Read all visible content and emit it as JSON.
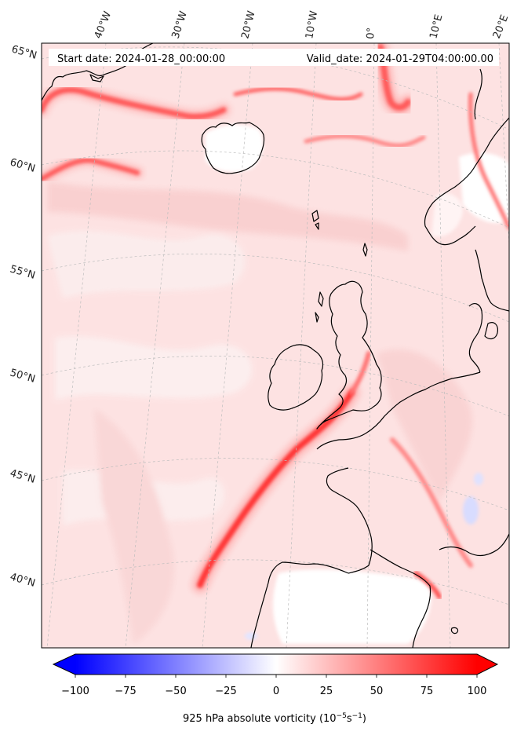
{
  "map": {
    "info": {
      "start_date": "Start date: 2024-01-28_00:00:00",
      "valid_date": "Valid_date: 2024-01-29T04:00:00.00"
    },
    "lon_labels": [
      "40°W",
      "30°W",
      "20°W",
      "10°W",
      "0°",
      "10°E",
      "20°E"
    ],
    "lat_labels": [
      "65°N",
      "60°N",
      "55°N",
      "50°N",
      "45°N",
      "40°N"
    ],
    "colorbar": {
      "label_prefix": "925 hPa absolute vorticity (10",
      "label_exp1": "−5",
      "label_mid": "s",
      "label_exp2": "−1",
      "label_suffix": ")",
      "ticks": [
        "−100",
        "−75",
        "−50",
        "−25",
        "0",
        "25",
        "50",
        "75",
        "100"
      ],
      "min": -100,
      "max": 100,
      "colormap": "bwr",
      "low_color": "#0000ff",
      "mid_color": "#ffffff",
      "high_color": "#ff0000"
    },
    "colors": {
      "background_field": "#fde0e0",
      "coast": "#000000",
      "gridline": "#bbbbbb"
    }
  }
}
